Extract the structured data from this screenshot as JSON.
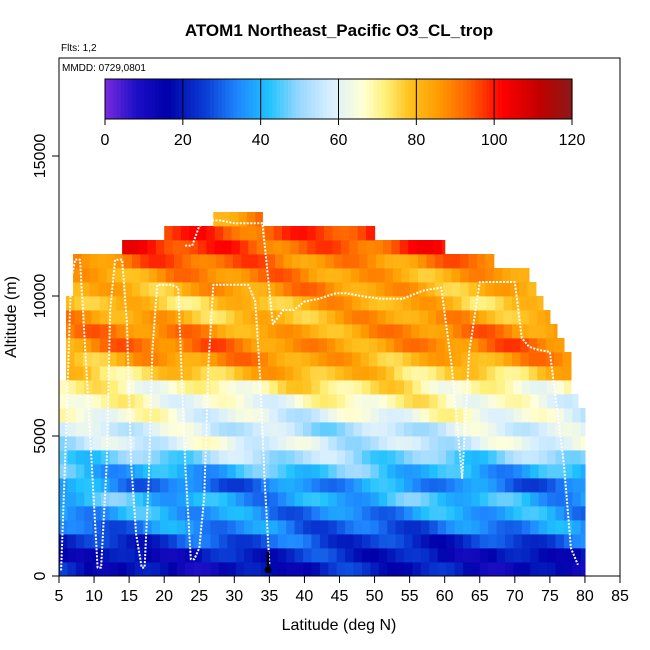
{
  "chart_data": {
    "type": "heatmap",
    "title": "ATOM1 Northeast_Pacific O3_CL_trop",
    "flights_label": "Flts: 1,2",
    "date_label": "MMDD: 0729,0801",
    "xlabel": "Latitude (deg N)",
    "ylabel": "Altitude (m)",
    "xlim": [
      5,
      85
    ],
    "ylim": [
      0,
      18500
    ],
    "xticks": [
      5,
      10,
      15,
      20,
      25,
      30,
      35,
      40,
      45,
      50,
      55,
      60,
      65,
      70,
      75,
      80,
      85
    ],
    "yticks": [
      0,
      5000,
      10000,
      15000
    ],
    "colorbar": {
      "range": [
        0,
        120
      ],
      "ticks": [
        0,
        20,
        40,
        60,
        80,
        100,
        120
      ],
      "stops": [
        {
          "value": 0,
          "color": "#7a2be0"
        },
        {
          "value": 8,
          "color": "#1c0fc7"
        },
        {
          "value": 16,
          "color": "#0000aa"
        },
        {
          "value": 26,
          "color": "#0a3fd6"
        },
        {
          "value": 34,
          "color": "#1f86ff"
        },
        {
          "value": 42,
          "color": "#1fc2ff"
        },
        {
          "value": 50,
          "color": "#9ad8ff"
        },
        {
          "value": 58,
          "color": "#d8efff"
        },
        {
          "value": 66,
          "color": "#ffffd8"
        },
        {
          "value": 72,
          "color": "#fff07a"
        },
        {
          "value": 78,
          "color": "#ffc21f"
        },
        {
          "value": 86,
          "color": "#ff9a00"
        },
        {
          "value": 94,
          "color": "#ff5a00"
        },
        {
          "value": 102,
          "color": "#ff0000"
        },
        {
          "value": 112,
          "color": "#c00000"
        },
        {
          "value": 120,
          "color": "#8b1a1a"
        }
      ]
    },
    "altitude_bands": [
      {
        "bottom": 0,
        "top": 500,
        "lat_min": 5,
        "lat_max": 80,
        "o3": 18
      },
      {
        "bottom": 500,
        "top": 1000,
        "lat_min": 5,
        "lat_max": 80,
        "o3": 20
      },
      {
        "bottom": 1000,
        "top": 1500,
        "lat_min": 5,
        "lat_max": 80,
        "o3": 26
      },
      {
        "bottom": 1500,
        "top": 2000,
        "lat_min": 5,
        "lat_max": 80,
        "o3": 32
      },
      {
        "bottom": 2000,
        "top": 2500,
        "lat_min": 5,
        "lat_max": 80,
        "o3": 36
      },
      {
        "bottom": 2500,
        "top": 3000,
        "lat_min": 5,
        "lat_max": 80,
        "o3": 40
      },
      {
        "bottom": 3000,
        "top": 3500,
        "lat_min": 5,
        "lat_max": 80,
        "o3": 34
      },
      {
        "bottom": 3500,
        "top": 4000,
        "lat_min": 5,
        "lat_max": 80,
        "o3": 42
      },
      {
        "bottom": 4000,
        "top": 4500,
        "lat_min": 5,
        "lat_max": 80,
        "o3": 50
      },
      {
        "bottom": 4500,
        "top": 5000,
        "lat_min": 5,
        "lat_max": 80,
        "o3": 58
      },
      {
        "bottom": 5000,
        "top": 5500,
        "lat_min": 5,
        "lat_max": 80,
        "o3": 56
      },
      {
        "bottom": 5500,
        "top": 6000,
        "lat_min": 5,
        "lat_max": 80,
        "o3": 62
      },
      {
        "bottom": 6000,
        "top": 6500,
        "lat_min": 5,
        "lat_max": 79,
        "o3": 66
      },
      {
        "bottom": 6500,
        "top": 7000,
        "lat_min": 5,
        "lat_max": 78,
        "o3": 70
      },
      {
        "bottom": 7000,
        "top": 7500,
        "lat_min": 6,
        "lat_max": 78,
        "o3": 78
      },
      {
        "bottom": 7500,
        "top": 8000,
        "lat_min": 6,
        "lat_max": 78,
        "o3": 84
      },
      {
        "bottom": 8000,
        "top": 8500,
        "lat_min": 6,
        "lat_max": 77,
        "o3": 88
      },
      {
        "bottom": 8500,
        "top": 9000,
        "lat_min": 6,
        "lat_max": 76,
        "o3": 86
      },
      {
        "bottom": 9000,
        "top": 9500,
        "lat_min": 6,
        "lat_max": 75,
        "o3": 82
      },
      {
        "bottom": 9500,
        "top": 10000,
        "lat_min": 6,
        "lat_max": 74,
        "o3": 80
      },
      {
        "bottom": 10000,
        "top": 10500,
        "lat_min": 7,
        "lat_max": 73,
        "o3": 84
      },
      {
        "bottom": 10500,
        "top": 11000,
        "lat_min": 7,
        "lat_max": 72,
        "o3": 86
      },
      {
        "bottom": 11000,
        "top": 11500,
        "lat_min": 7,
        "lat_max": 67,
        "o3": 90
      },
      {
        "bottom": 11500,
        "top": 12000,
        "lat_min": 14,
        "lat_max": 60,
        "o3": 96
      },
      {
        "bottom": 12000,
        "top": 12500,
        "lat_min": 20,
        "lat_max": 50,
        "o3": 98
      },
      {
        "bottom": 12500,
        "top": 13000,
        "lat_min": 27,
        "lat_max": 34,
        "o3": 90
      }
    ],
    "flight_profiles": [
      {
        "lat": [
          5.3,
          6.0,
          6.7,
          7.3,
          8.0,
          9.0,
          10.0,
          10.5,
          11.0,
          11.8,
          12.3,
          13.0,
          14.0,
          14.7,
          15.3,
          16.0,
          16.8,
          17.2,
          17.8,
          18.3,
          19.0,
          19.5,
          20.3,
          21.0,
          22.0,
          23.0,
          23.8,
          24.3,
          25.0,
          25.7,
          26.3,
          27.0,
          28.0,
          29.0,
          30.0,
          31.0,
          32.0,
          33.0,
          33.7,
          34.3,
          35.0
        ],
        "alt": [
          200,
          5000,
          10500,
          11300,
          11300,
          7000,
          2500,
          300,
          300,
          4000,
          9500,
          11300,
          11300,
          9000,
          4000,
          1500,
          300,
          300,
          3500,
          8000,
          10400,
          10400,
          10400,
          10400,
          10300,
          4000,
          600,
          600,
          1000,
          2800,
          7500,
          10400,
          10400,
          10400,
          10400,
          10400,
          10400,
          9800,
          7000,
          3500,
          400
        ]
      },
      {
        "lat": [
          23.0,
          24.0,
          25.0,
          26.5,
          28.0,
          30.0,
          32.0,
          34.0,
          35.5,
          37.0,
          38.5,
          40.0,
          42.0,
          44.5,
          46.0,
          48.0,
          51.0,
          54.0,
          57.0,
          59.5,
          61.0,
          62.5,
          63.5,
          65.0,
          67.0,
          70.0,
          71.0,
          72.0,
          73.0,
          75.0,
          77.0,
          78.0,
          79.0
        ],
        "alt": [
          11800,
          11800,
          12500,
          12700,
          12700,
          12600,
          12600,
          12600,
          9000,
          9500,
          9500,
          9800,
          9900,
          10100,
          10100,
          10000,
          9900,
          9900,
          10200,
          10300,
          7500,
          3500,
          8000,
          10500,
          10500,
          10500,
          8500,
          8200,
          8100,
          8000,
          4000,
          1000,
          400
        ]
      }
    ],
    "aircraft_marker": {
      "lat": 34.8,
      "alt": 150
    }
  }
}
